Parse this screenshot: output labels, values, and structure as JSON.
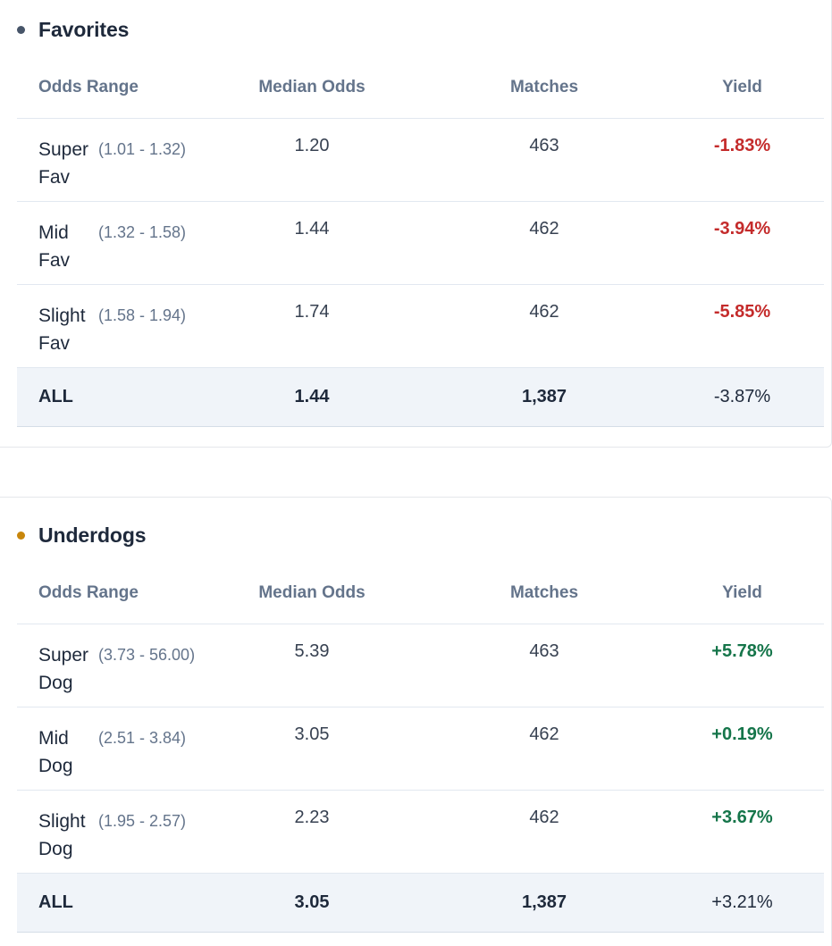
{
  "colors": {
    "favorites_dot": "#475569",
    "underdogs_dot": "#c8860b",
    "negative": "#c42b2b",
    "positive": "#15754a"
  },
  "favorites": {
    "title": "Favorites",
    "headers": [
      "Odds Range",
      "Median Odds",
      "Matches",
      "Yield"
    ],
    "rows": [
      {
        "name": "Super Fav",
        "range": "(1.01 - 1.32)",
        "median": "1.20",
        "matches": "463",
        "yield": "-1.83%"
      },
      {
        "name": "Mid Fav",
        "range": "(1.32 - 1.58)",
        "median": "1.44",
        "matches": "462",
        "yield": "-3.94%"
      },
      {
        "name": "Slight Fav",
        "range": "(1.58 - 1.94)",
        "median": "1.74",
        "matches": "462",
        "yield": "-5.85%"
      }
    ],
    "total": {
      "name": "ALL",
      "median": "1.44",
      "matches": "1,387",
      "yield": "-3.87%"
    }
  },
  "underdogs": {
    "title": "Underdogs",
    "headers": [
      "Odds Range",
      "Median Odds",
      "Matches",
      "Yield"
    ],
    "rows": [
      {
        "name": "Super Dog",
        "range": "(3.73 - 56.00)",
        "median": "5.39",
        "matches": "463",
        "yield": "+5.78%"
      },
      {
        "name": "Mid Dog",
        "range": "(2.51 - 3.84)",
        "median": "3.05",
        "matches": "462",
        "yield": "+0.19%"
      },
      {
        "name": "Slight Dog",
        "range": "(1.95 - 2.57)",
        "median": "2.23",
        "matches": "462",
        "yield": "+3.67%"
      }
    ],
    "total": {
      "name": "ALL",
      "median": "3.05",
      "matches": "1,387",
      "yield": "+3.21%"
    }
  }
}
